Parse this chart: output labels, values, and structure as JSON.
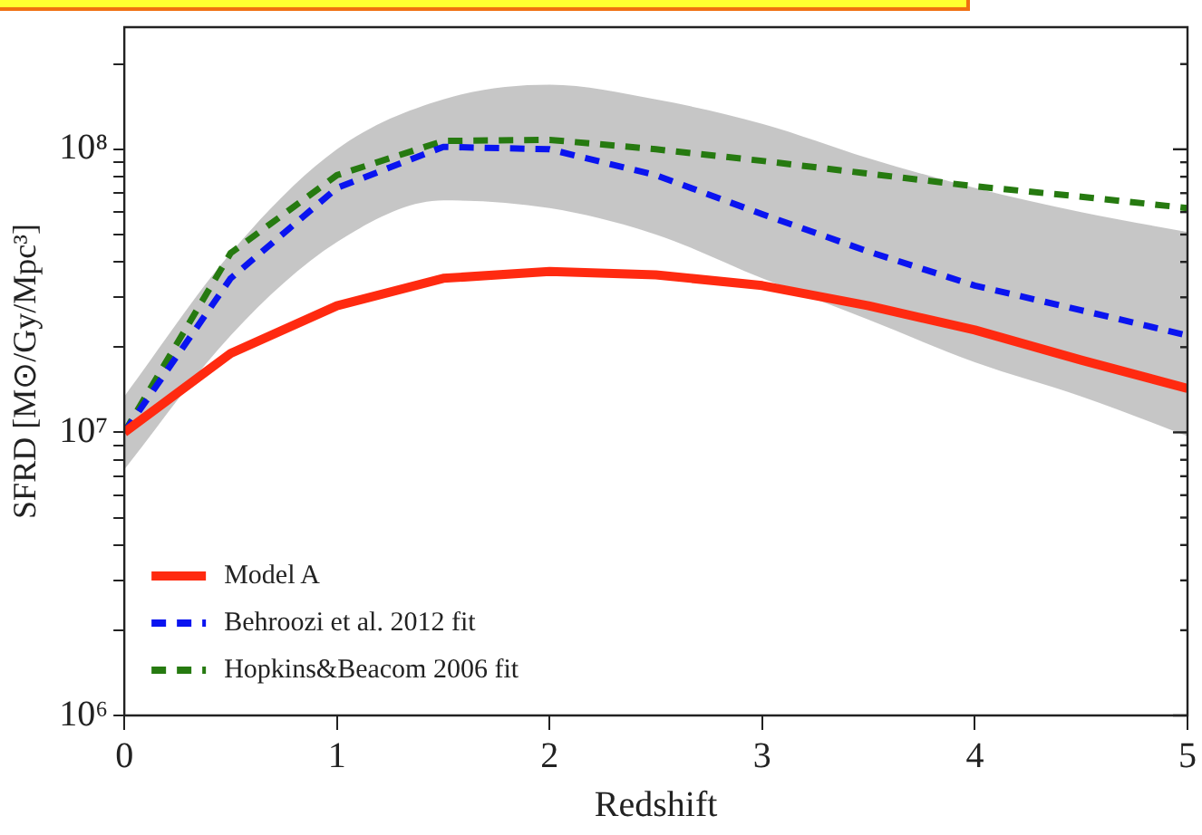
{
  "chart_data": {
    "type": "line",
    "xlabel": "Redshift",
    "ylabel": "SFRD [M⊙/Gy/Mpc³]",
    "log": "y",
    "grid": false,
    "legend": "bottom left",
    "line_style": "solid",
    "marker": "none",
    "x": [
      0,
      0.5,
      1,
      1.5,
      2,
      2.5,
      3,
      3.5,
      4,
      4.5,
      5
    ],
    "xlim": [
      0,
      5
    ],
    "xticks": [
      0,
      1,
      2,
      3,
      4,
      5
    ],
    "ylim": [
      1000000,
      270000000
    ],
    "yticks": [
      {
        "value": 1000000,
        "label": "10⁶"
      },
      {
        "value": 2000000,
        "label": null
      },
      {
        "value": 3000000,
        "label": null
      },
      {
        "value": 4000000,
        "label": null
      },
      {
        "value": 5000000,
        "label": null
      },
      {
        "value": 6000000,
        "label": null
      },
      {
        "value": 7000000,
        "label": null
      },
      {
        "value": 8000000,
        "label": null
      },
      {
        "value": 9000000,
        "label": null
      },
      {
        "value": 10000000,
        "label": "10⁷"
      },
      {
        "value": 20000000,
        "label": null
      },
      {
        "value": 30000000,
        "label": null
      },
      {
        "value": 40000000,
        "label": null
      },
      {
        "value": 50000000,
        "label": null
      },
      {
        "value": 60000000,
        "label": null
      },
      {
        "value": 70000000,
        "label": null
      },
      {
        "value": 80000000,
        "label": null
      },
      {
        "value": 90000000,
        "label": null
      },
      {
        "value": 100000000,
        "label": "10⁸"
      },
      {
        "value": 200000000,
        "label": null
      }
    ],
    "series": [
      {
        "name": "Model A",
        "color": "#ff2a10",
        "values": [
          10000000,
          19000000,
          28000000,
          35000000,
          37000000,
          36000000,
          33000000,
          28000000,
          23000000,
          18000000,
          14300000
        ]
      },
      {
        "name": "Behroozi et al. 2012 fit",
        "color": "#0a14f0",
        "line_style": "dashed",
        "values": [
          10000000,
          35000000,
          73000000,
          102000000,
          100000000,
          81000000,
          59000000,
          43500000,
          33000000,
          27000000,
          22000000
        ],
        "lower": [
          7400000,
          22000000,
          47000000,
          66000000,
          62000000,
          50000000,
          35000000,
          25000000,
          17700000,
          13400000,
          9700000
        ],
        "upper": [
          13400000,
          43000000,
          100000000,
          150000000,
          169000000,
          150000000,
          123000000,
          93000000,
          73000000,
          60000000,
          51000000
        ]
      },
      {
        "name": "Hopkins&Beacom 2006 fit",
        "color": "#267a10",
        "line_style": "dashed",
        "values": [
          10000000,
          43000000,
          81000000,
          107000000,
          108000000,
          100000000,
          91000000,
          82000000,
          74000000,
          68000000,
          62000000
        ]
      }
    ]
  }
}
